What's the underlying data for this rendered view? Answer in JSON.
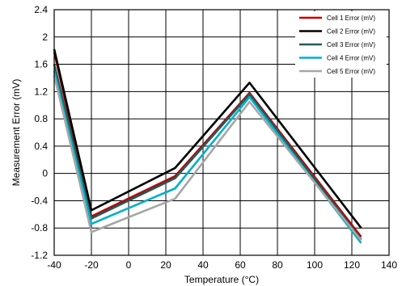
{
  "chart_data": {
    "type": "line",
    "title": "",
    "xlabel": "Temperature (°C)",
    "ylabel": "Measurement Error (mV)",
    "xlim": [
      -40,
      140
    ],
    "ylim": [
      -1.2,
      2.4
    ],
    "xticks": [
      "-40",
      "-20",
      "0",
      "20",
      "40",
      "60",
      "80",
      "100",
      "120",
      "140"
    ],
    "yticks": [
      "-1.2",
      "-0.8",
      "-0.4",
      "0",
      "0.4",
      "0.8",
      "1.2",
      "1.6",
      "2",
      "2.4"
    ],
    "grid": true,
    "legend_position": "top-right",
    "x": [
      -40,
      -20,
      25,
      65,
      125
    ],
    "series": [
      {
        "name": "Cell 1 Error (mV)",
        "color": "#c00000",
        "values": [
          1.78,
          -0.63,
          -0.04,
          1.18,
          -0.93
        ]
      },
      {
        "name": "Cell 2 Error (mV)",
        "color": "#000000",
        "values": [
          1.82,
          -0.54,
          0.08,
          1.33,
          -0.8
        ]
      },
      {
        "name": "Cell 3 Error (mV)",
        "color": "#1f5c5c",
        "values": [
          1.6,
          -0.66,
          -0.07,
          1.16,
          -0.97
        ]
      },
      {
        "name": "Cell 4 Error (mV)",
        "color": "#00b0c8",
        "values": [
          1.5,
          -0.74,
          -0.22,
          1.12,
          -1.02
        ]
      },
      {
        "name": "Cell 5 Error (mV)",
        "color": "#a6a6a6",
        "values": [
          1.44,
          -0.86,
          -0.37,
          1.05,
          -0.98
        ]
      }
    ]
  }
}
